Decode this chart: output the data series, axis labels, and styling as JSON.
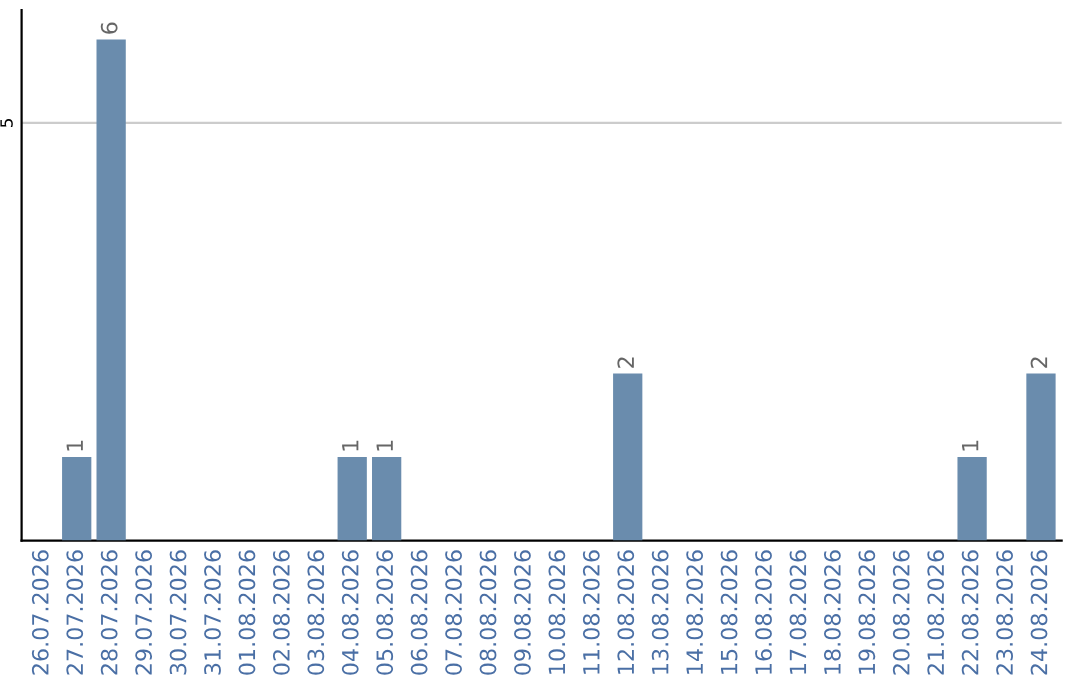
{
  "chart_data": {
    "type": "bar",
    "categories": [
      "26.07.2026",
      "27.07.2026",
      "28.07.2026",
      "29.07.2026",
      "30.07.2026",
      "31.07.2026",
      "01.08.2026",
      "02.08.2026",
      "03.08.2026",
      "04.08.2026",
      "05.08.2026",
      "06.08.2026",
      "07.08.2026",
      "08.08.2026",
      "09.08.2026",
      "10.08.2026",
      "11.08.2026",
      "12.08.2026",
      "13.08.2026",
      "14.08.2026",
      "15.08.2026",
      "16.08.2026",
      "17.08.2026",
      "18.08.2026",
      "19.08.2026",
      "20.08.2026",
      "21.08.2026",
      "22.08.2026",
      "23.08.2026",
      "24.08.2026"
    ],
    "values": [
      0,
      1,
      6,
      0,
      0,
      0,
      0,
      0,
      0,
      1,
      1,
      0,
      0,
      0,
      0,
      0,
      0,
      2,
      0,
      0,
      0,
      0,
      0,
      0,
      0,
      0,
      0,
      1,
      0,
      2
    ],
    "color": "#6a8cad",
    "ylim": [
      0,
      6.35
    ],
    "yticks": [
      5
    ],
    "grid": "y",
    "value_labels": [
      null,
      "1",
      "6",
      null,
      null,
      null,
      null,
      null,
      null,
      "1",
      "1",
      null,
      null,
      null,
      null,
      null,
      null,
      "2",
      null,
      null,
      null,
      null,
      null,
      null,
      null,
      null,
      null,
      "1",
      null,
      "2"
    ]
  }
}
